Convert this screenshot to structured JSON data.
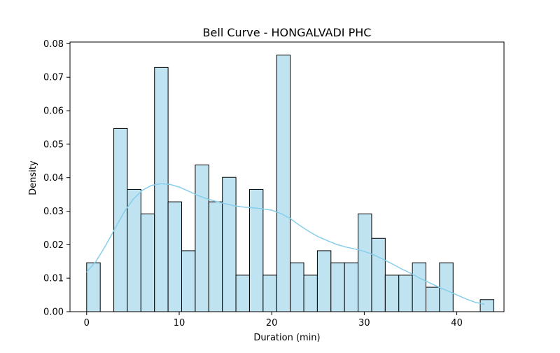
{
  "chart_data": {
    "type": "bar",
    "title": "Bell Curve - HONGALVADI PHC",
    "xlabel": "Duration (min)",
    "ylabel": "Density",
    "xlim": [
      -1.8,
      45.1
    ],
    "ylim": [
      0,
      0.0805
    ],
    "xticks": [
      0,
      10,
      20,
      30,
      40
    ],
    "yticks": [
      0.0,
      0.01,
      0.02,
      0.03,
      0.04,
      0.05,
      0.06,
      0.07,
      0.08
    ],
    "bins": {
      "edges": [
        0,
        1.4667,
        2.9333,
        4.4,
        5.8667,
        7.3333,
        8.8,
        10.2667,
        11.7333,
        13.2,
        14.6667,
        16.1333,
        17.6,
        19.0667,
        20.5333,
        22.0,
        23.4667,
        24.9333,
        26.4,
        27.8667,
        29.3333,
        30.8,
        32.2667,
        33.7333,
        35.2,
        36.6667,
        38.1333,
        39.6,
        41.0667,
        42.5333,
        44.0
      ],
      "density": [
        0.0146,
        0.0,
        0.0547,
        0.0365,
        0.0292,
        0.0729,
        0.0328,
        0.0182,
        0.0438,
        0.0328,
        0.0401,
        0.0109,
        0.0365,
        0.0109,
        0.0766,
        0.0146,
        0.0109,
        0.0182,
        0.0146,
        0.0146,
        0.0292,
        0.0219,
        0.0109,
        0.0109,
        0.0146,
        0.0073,
        0.0146,
        0.0,
        0.0,
        0.0036
      ]
    },
    "kde": {
      "x": [
        0,
        1,
        2,
        3,
        4,
        5,
        6,
        7,
        8,
        9,
        10,
        11,
        12,
        13,
        14,
        15,
        16,
        17,
        18,
        19,
        20,
        21,
        22,
        23,
        24,
        25,
        26,
        27,
        28,
        29,
        30,
        31,
        32,
        33,
        34,
        35,
        36,
        37,
        38,
        39,
        40,
        41,
        42,
        43
      ],
      "y": [
        0.0118,
        0.015,
        0.0195,
        0.0245,
        0.0295,
        0.0335,
        0.0362,
        0.0377,
        0.0382,
        0.038,
        0.0372,
        0.036,
        0.0347,
        0.0337,
        0.0329,
        0.0322,
        0.0316,
        0.0312,
        0.031,
        0.0307,
        0.0303,
        0.0293,
        0.0278,
        0.0258,
        0.024,
        0.0224,
        0.0212,
        0.0201,
        0.0193,
        0.0187,
        0.018,
        0.017,
        0.0157,
        0.0143,
        0.0128,
        0.0115,
        0.01,
        0.0087,
        0.0074,
        0.0062,
        0.005,
        0.0038,
        0.0028,
        0.0022
      ]
    },
    "colors": {
      "bar_fill": "#bfe3f1",
      "bar_edge": "#000000",
      "kde_line": "#87ceeb"
    },
    "grid": false,
    "legend": "none"
  }
}
